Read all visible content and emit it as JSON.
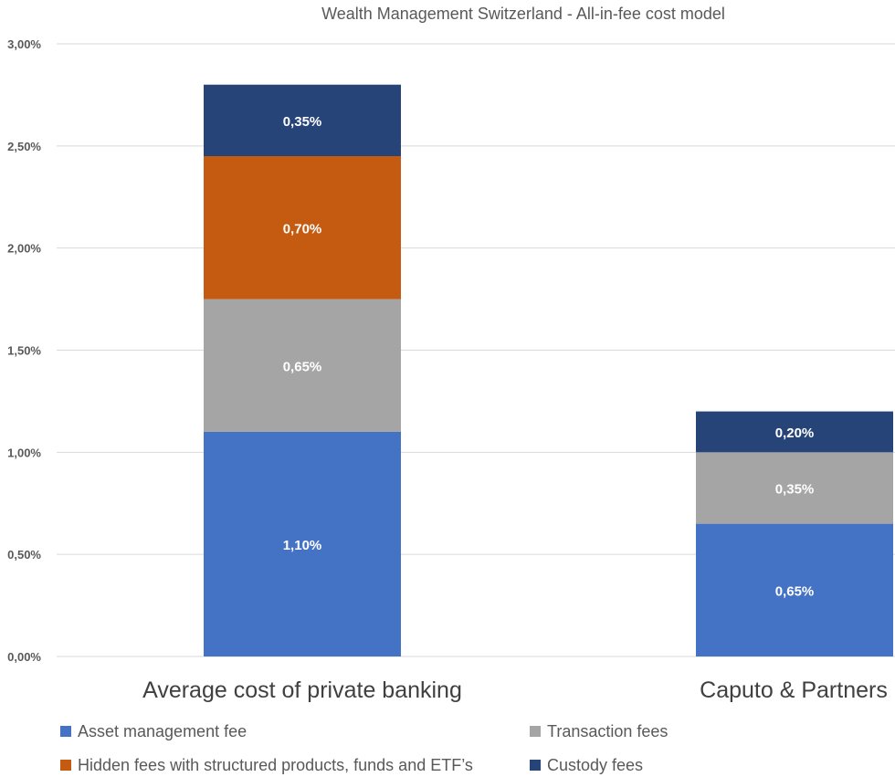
{
  "chart_data": {
    "type": "bar",
    "stacked": true,
    "title": "Wealth Management Switzerland - All-in-fee cost model",
    "categories": [
      "Average cost of private banking",
      "Caputo & Partners"
    ],
    "ylim": [
      0,
      3.0
    ],
    "yticks": [
      "0,00%",
      "0,50%",
      "1,00%",
      "1,50%",
      "2,00%",
      "2,50%",
      "3,00%"
    ],
    "grid": true,
    "legend_position": "bottom",
    "series": [
      {
        "name": "Asset management fee",
        "color": "#4472C4",
        "values": [
          1.1,
          0.65
        ],
        "labels": [
          "1,10%",
          "0,65%"
        ]
      },
      {
        "name": "Transaction fees",
        "color": "#A5A5A5",
        "values": [
          0.65,
          0.35
        ],
        "labels": [
          "0,65%",
          "0,35%"
        ]
      },
      {
        "name": "Hidden fees with structured products, funds and ETF’s",
        "color": "#C55A11",
        "values": [
          0.7,
          0
        ],
        "labels": [
          "0,70%",
          ""
        ]
      },
      {
        "name": "Custody fees",
        "color": "#264478",
        "values": [
          0.35,
          0.2
        ],
        "labels": [
          "0,35%",
          "0,20%"
        ]
      }
    ]
  }
}
